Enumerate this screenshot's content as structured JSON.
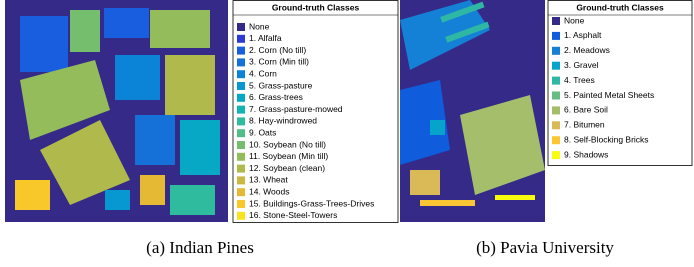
{
  "figures": [
    {
      "legend_title": "Ground-truth Classes",
      "caption": "(a) Indian Pines",
      "classes": [
        {
          "name": "None",
          "color": "#352a87"
        },
        {
          "name": "1. Alfalfa",
          "color": "#2f3ad6"
        },
        {
          "name": "2. Corn (No till)",
          "color": "#1a5ee0"
        },
        {
          "name": "3. Corn (Min till)",
          "color": "#1570d8"
        },
        {
          "name": "4. Corn",
          "color": "#0b84d8"
        },
        {
          "name": "5. Grass-pasture",
          "color": "#0898d1"
        },
        {
          "name": "6. Grass-trees",
          "color": "#06a8c6"
        },
        {
          "name": "7. Grass-pasture-mowed",
          "color": "#12b3b3"
        },
        {
          "name": "8. Hay-windrowed",
          "color": "#2ebb9e"
        },
        {
          "name": "9. Oats",
          "color": "#50be86"
        },
        {
          "name": "10. Soybean (No till)",
          "color": "#75be6e"
        },
        {
          "name": "11. Soybean (Min till)",
          "color": "#95bc5b"
        },
        {
          "name": "12. Soybean (clean)",
          "color": "#b0ba4c"
        },
        {
          "name": "13. Wheat",
          "color": "#ccb742"
        },
        {
          "name": "14. Woods",
          "color": "#e6b934"
        },
        {
          "name": "15. Buildings-Grass-Trees-Drives",
          "color": "#f8c82a"
        },
        {
          "name": "16. Stone-Steel-Towers",
          "color": "#f6e51c"
        }
      ]
    },
    {
      "legend_title": "Ground-truth Classes",
      "caption": "(b) Pavia University",
      "classes": [
        {
          "name": "None",
          "color": "#352a87"
        },
        {
          "name": "1. Asphalt",
          "color": "#0f5cdd"
        },
        {
          "name": "2. Meadows",
          "color": "#1481d6"
        },
        {
          "name": "3. Gravel",
          "color": "#06a4ca"
        },
        {
          "name": "4. Trees",
          "color": "#2eb7a4"
        },
        {
          "name": "5. Painted Metal Sheets",
          "color": "#65be80"
        },
        {
          "name": "6. Bare Soil",
          "color": "#a5be6b"
        },
        {
          "name": "7. Bitumen",
          "color": "#d9ba56"
        },
        {
          "name": "8. Self-Blocking Bricks",
          "color": "#fbc634"
        },
        {
          "name": "9. Shadows",
          "color": "#f9fb0e"
        }
      ]
    }
  ]
}
